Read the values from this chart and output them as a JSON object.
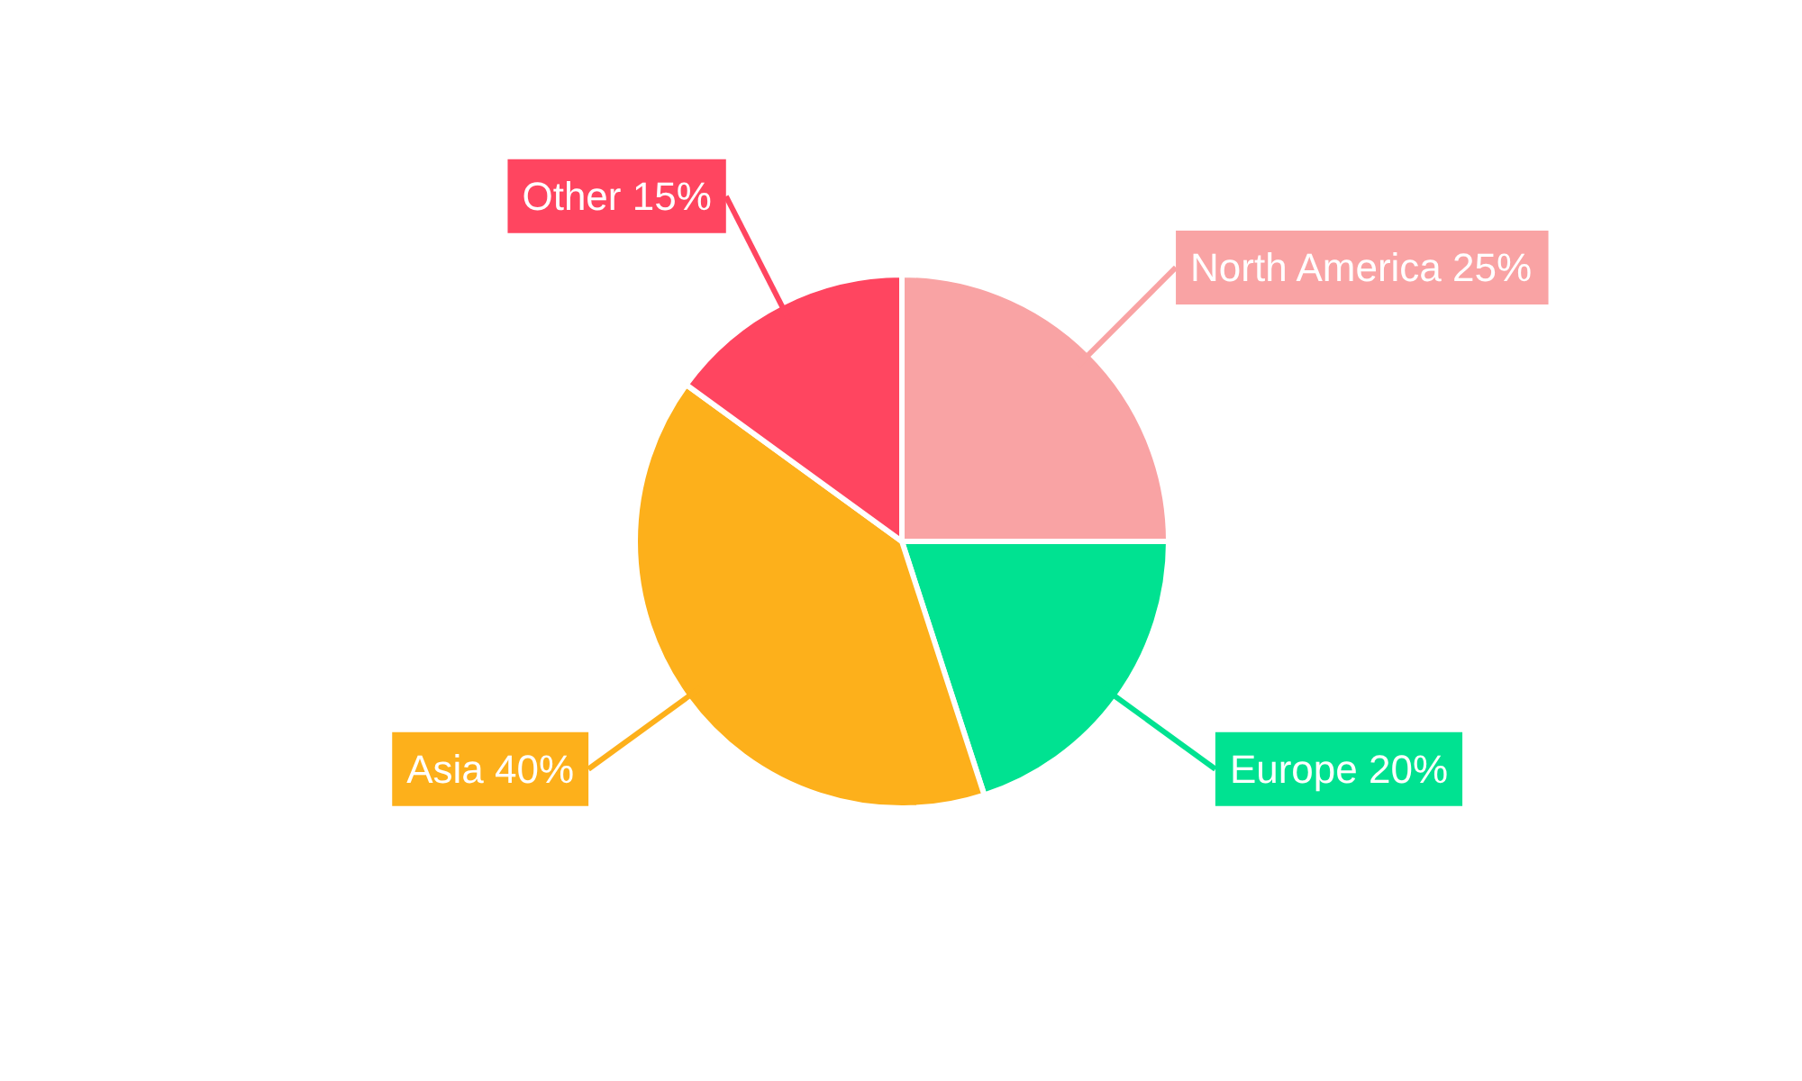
{
  "chart_data": {
    "type": "pie",
    "categories": [
      "North America",
      "Europe",
      "Asia",
      "Other"
    ],
    "values": [
      25,
      20,
      40,
      15
    ],
    "value_labels": [
      "25%",
      "20%",
      "40%",
      "15%"
    ],
    "colors": [
      "#f9a3a4",
      "#00e291",
      "#fdb01b",
      "#ff4560"
    ]
  }
}
